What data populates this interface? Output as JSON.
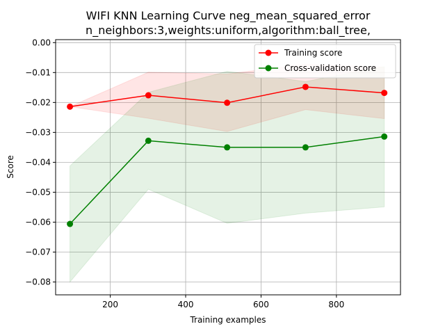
{
  "chart_data": {
    "type": "line",
    "title": "WIFI KNN Learning Curve neg_mean_squared_error",
    "subtitle": "n_neighbors:3,weights:uniform,algorithm:ball_tree,",
    "xlabel": "Training examples",
    "ylabel": "Score",
    "xlim": [
      55,
      970
    ],
    "ylim": [
      -0.0843,
      0.001
    ],
    "xticks": [
      200,
      400,
      600,
      800
    ],
    "xtick_labels": [
      "200",
      "400",
      "600",
      "800"
    ],
    "yticks": [
      0.0,
      -0.01,
      -0.02,
      -0.03,
      -0.04,
      -0.05,
      -0.06,
      -0.07,
      -0.08
    ],
    "ytick_labels": [
      "0.00",
      "−0.01",
      "−0.02",
      "−0.03",
      "−0.04",
      "−0.05",
      "−0.06",
      "−0.07",
      "−0.08"
    ],
    "grid": true,
    "legend_position": "top-right",
    "x": [
      93,
      301,
      510,
      718,
      927
    ],
    "series": [
      {
        "name": "Training score",
        "color": "#ff0000",
        "band_color": "#ff0000",
        "values": [
          -0.0214,
          -0.0176,
          -0.0201,
          -0.0148,
          -0.0168
        ],
        "band_upper": [
          -0.0214,
          -0.0099,
          -0.0105,
          -0.0072,
          -0.0082
        ],
        "band_lower": [
          -0.0214,
          -0.0253,
          -0.0297,
          -0.0224,
          -0.0254
        ]
      },
      {
        "name": "Cross-validation score",
        "color": "#008000",
        "band_color": "#008000",
        "values": [
          -0.0606,
          -0.0328,
          -0.035,
          -0.035,
          -0.0314
        ],
        "band_upper": [
          -0.0412,
          -0.0166,
          -0.0096,
          -0.013,
          -0.008
        ],
        "band_lower": [
          -0.08,
          -0.049,
          -0.0604,
          -0.057,
          -0.0549
        ]
      }
    ]
  }
}
